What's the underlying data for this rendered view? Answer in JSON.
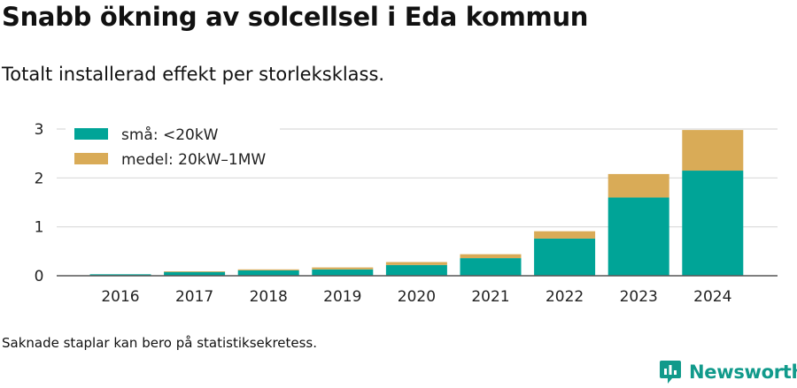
{
  "header": {
    "title": "Snabb ökning av solcellsel i Eda kommun",
    "subtitle": "Totalt installerad effekt per storleksklass."
  },
  "footer": {
    "note": "Saknade staplar kan bero på statistiksekretess.",
    "brand": "Newsworthy"
  },
  "colors": {
    "small": "#00a497",
    "medium": "#d9ab57",
    "grid": "#d9d9d9",
    "brand": "#119a8b"
  },
  "chart_data": {
    "type": "bar",
    "stacked": true,
    "categories": [
      "2016",
      "2017",
      "2018",
      "2019",
      "2020",
      "2021",
      "2022",
      "2023",
      "2024"
    ],
    "series": [
      {
        "name": "små: <20kW",
        "values": [
          0.03,
          0.08,
          0.11,
          0.13,
          0.22,
          0.36,
          0.76,
          1.6,
          2.15
        ]
      },
      {
        "name": "medel: 20kW–1MW",
        "values": [
          0.0,
          0.01,
          0.02,
          0.04,
          0.06,
          0.08,
          0.15,
          0.48,
          0.83
        ]
      }
    ],
    "ylim": [
      0,
      3.2
    ],
    "yticks": [
      0,
      1,
      2,
      3
    ],
    "grid": true,
    "legend": "top-left"
  }
}
